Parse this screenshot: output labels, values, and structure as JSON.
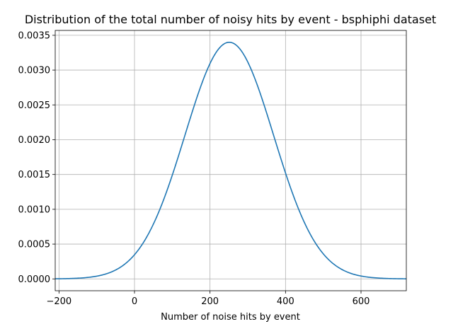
{
  "chart_data": {
    "type": "line",
    "title": "Distribution of the total number of noisy hits by event - bsphiphi dataset",
    "xlabel": "Number of noise hits by event",
    "ylabel": "",
    "xlim": [
      -210,
      720
    ],
    "ylim": [
      -0.00017,
      0.00357
    ],
    "xticks": [
      -200,
      0,
      200,
      400,
      600
    ],
    "xtick_labels": [
      "−200",
      "0",
      "200",
      "400",
      "600"
    ],
    "yticks": [
      0.0,
      0.0005,
      0.001,
      0.0015,
      0.002,
      0.0025,
      0.003,
      0.0035
    ],
    "ytick_labels": [
      "0.0000",
      "0.0005",
      "0.0010",
      "0.0015",
      "0.0020",
      "0.0025",
      "0.0030",
      "0.0035"
    ],
    "grid": true,
    "series": [
      {
        "name": "",
        "color": "#1f77b4",
        "distribution": "normal",
        "mean": 251,
        "std": 117.5,
        "peak": 0.0034,
        "x_range": [
          -210,
          720
        ]
      }
    ]
  }
}
